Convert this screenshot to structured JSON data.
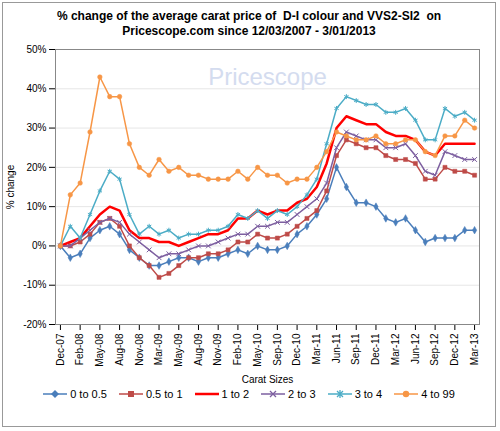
{
  "chart_data": {
    "type": "line",
    "title": "% change of the average carat price of  D-I colour and VVS2-SI2  on Pricescope.com since 12/03/2007 - 3/01/2013",
    "annotations": [
      "Pricescope"
    ],
    "x_label": "Carat Sizes",
    "y_label": "% change",
    "categories": [
      "Dec-07",
      null,
      "Feb-08",
      null,
      "May-08",
      null,
      "Aug-08",
      null,
      "Nov-08",
      null,
      "Mar-09",
      null,
      "May-09",
      null,
      "Aug-09",
      null,
      "Nov-09",
      null,
      "Feb-10",
      null,
      "May-10",
      null,
      "Sep-10",
      null,
      "Dec-10",
      null,
      "Mar-11",
      null,
      "Jun-11",
      null,
      "Sep-11",
      null,
      "Dec-11",
      null,
      "Mar-12",
      null,
      "Jun-12",
      null,
      "Sep-12",
      null,
      "Dec-12",
      null,
      "Mar-13"
    ],
    "ylim": [
      -20,
      50
    ],
    "yticks": [
      {
        "value": -20,
        "label": "-20%"
      },
      {
        "value": -10,
        "label": "-10%"
      },
      {
        "value": 0,
        "label": "0%"
      },
      {
        "value": 10,
        "label": "10%"
      },
      {
        "value": 20,
        "label": "20%"
      },
      {
        "value": 30,
        "label": "30%"
      },
      {
        "value": 40,
        "label": "40%"
      },
      {
        "value": 50,
        "label": "50%"
      }
    ],
    "grid": true,
    "legend": "bottom",
    "series": [
      {
        "name": "0 to 0.5",
        "color": "#4a7ebb",
        "marker": "diamond",
        "values": [
          0,
          -3,
          -2,
          2,
          4,
          5,
          3,
          -1,
          -3,
          -5,
          -5,
          -4,
          -3,
          -3,
          -4,
          -3,
          -3,
          -2,
          -1,
          -2,
          0,
          -1,
          -1,
          0,
          3,
          5,
          8,
          12,
          20,
          15,
          11,
          11,
          10,
          7,
          6,
          7,
          4,
          1,
          2,
          2,
          2,
          4,
          4
        ]
      },
      {
        "name": "0.5 to 1",
        "color": "#be4b48",
        "marker": "square",
        "values": [
          0,
          0,
          1,
          3,
          6,
          7,
          5,
          0,
          -3,
          -5,
          -8,
          -7,
          -5,
          -3,
          -3,
          -2,
          -2,
          -1,
          1,
          1,
          3,
          2,
          2,
          3,
          5,
          7,
          9,
          14,
          23,
          27,
          26,
          25,
          25,
          23,
          22,
          22,
          21,
          17,
          17,
          20,
          19,
          19,
          18
        ]
      },
      {
        "name": "1 to 2",
        "color": "#ff0000",
        "marker": "none",
        "values": [
          0,
          1,
          2,
          5,
          8,
          10,
          9,
          4,
          2,
          2,
          1,
          1,
          0,
          1,
          2,
          3,
          3,
          4,
          7,
          7,
          9,
          8,
          9,
          9,
          11,
          12,
          15,
          21,
          30,
          33,
          32,
          31,
          31,
          29,
          28,
          28,
          27,
          24,
          23,
          26,
          26,
          26,
          26
        ]
      },
      {
        "name": "2 to 3",
        "color": "#7d5fa0",
        "marker": "x",
        "values": [
          0,
          0,
          2,
          4,
          6,
          7,
          6,
          3,
          1,
          -1,
          -3,
          -2,
          -2,
          -1,
          0,
          0,
          1,
          2,
          3,
          3,
          5,
          5,
          6,
          6,
          8,
          10,
          12,
          16,
          25,
          29,
          28,
          27,
          27,
          25,
          25,
          26,
          23,
          19,
          18,
          24,
          23,
          22,
          22
        ]
      },
      {
        "name": "3 to 4",
        "color": "#4bacc6",
        "marker": "star",
        "values": [
          0,
          5,
          2,
          8,
          14,
          19,
          17,
          8,
          3,
          5,
          3,
          4,
          2,
          3,
          3,
          4,
          4,
          5,
          8,
          7,
          9,
          7,
          9,
          8,
          10,
          13,
          17,
          26,
          35,
          38,
          37,
          36,
          36,
          34,
          34,
          35,
          32,
          27,
          27,
          35,
          33,
          34,
          32
        ]
      },
      {
        "name": "4 to 99",
        "color": "#f79646",
        "marker": "circle",
        "values": [
          0,
          13,
          16,
          29,
          43,
          38,
          38,
          26,
          20,
          18,
          22,
          19,
          20,
          18,
          18,
          17,
          17,
          17,
          19,
          17,
          20,
          18,
          18,
          16,
          17,
          17,
          20,
          24,
          29,
          28,
          27,
          27,
          28,
          26,
          26,
          27,
          27,
          24,
          23,
          28,
          28,
          32,
          30
        ]
      }
    ]
  }
}
